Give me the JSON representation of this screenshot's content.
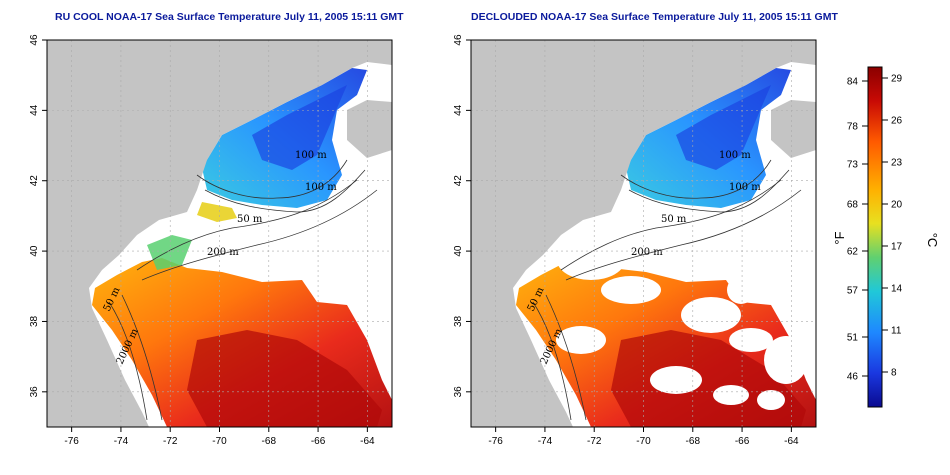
{
  "panels": [
    {
      "id": "left",
      "title": "RU COOL NOAA-17 Sea Surface Temperature July 11, 2005 15:11 GMT",
      "variant": "full"
    },
    {
      "id": "right",
      "title": "DECLOUDED NOAA-17 Sea Surface Temperature July 11, 2005 15:11 GMT",
      "variant": "declouded"
    }
  ],
  "axes": {
    "x_ticks": [
      "-76",
      "-74",
      "-72",
      "-70",
      "-68",
      "-66",
      "-64"
    ],
    "y_ticks": [
      "36",
      "38",
      "40",
      "42",
      "44",
      "46"
    ],
    "lon_range": [
      -77,
      -63
    ],
    "lat_range": [
      35,
      46
    ]
  },
  "contour_labels": [
    "100 m",
    "100 m",
    "50 m",
    "200 m",
    "50 m",
    "2000 m"
  ],
  "colorbar": {
    "fahrenheit_ticks": [
      "84",
      "78",
      "73",
      "68",
      "62",
      "57",
      "51",
      "46"
    ],
    "celsius_ticks": [
      "29",
      "26",
      "23",
      "20",
      "17",
      "14",
      "11",
      "8"
    ],
    "fahrenheit_unit": "°F",
    "celsius_unit": "°C",
    "colors": [
      "#8b0000",
      "#d81e05",
      "#ff6a00",
      "#ffc000",
      "#d8e020",
      "#58d070",
      "#22c8d8",
      "#1e90ff",
      "#1a40e0",
      "#0a0a90"
    ]
  },
  "colors": {
    "land": "#c4c4c4",
    "frame": "#000000",
    "grid": "#aaaaaa",
    "title": "#0a1a9c"
  }
}
